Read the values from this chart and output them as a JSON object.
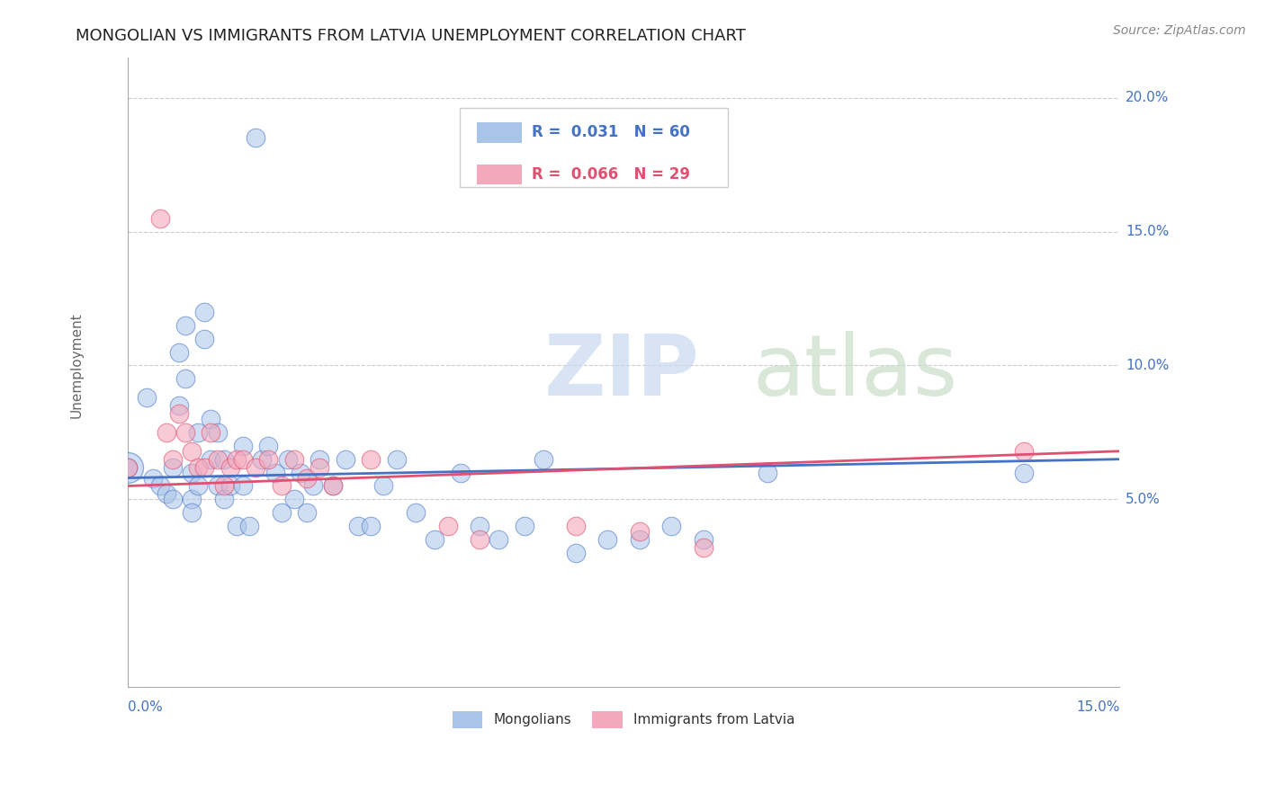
{
  "title": "MONGOLIAN VS IMMIGRANTS FROM LATVIA UNEMPLOYMENT CORRELATION CHART",
  "source": "Source: ZipAtlas.com",
  "ylabel": "Unemployment",
  "yaxis_labels": [
    "5.0%",
    "10.0%",
    "15.0%",
    "20.0%"
  ],
  "yaxis_values": [
    0.05,
    0.1,
    0.15,
    0.2
  ],
  "xlim": [
    0.0,
    0.155
  ],
  "ylim": [
    -0.02,
    0.215
  ],
  "legend_r1": "R =  0.031",
  "legend_n1": "N = 60",
  "legend_r2": "R =  0.066",
  "legend_n2": "N = 29",
  "blue_color": "#a8c4e8",
  "pink_color": "#f4a8bc",
  "blue_line_color": "#4472c4",
  "pink_line_color": "#e05070",
  "legend_text_color_blue": "#4472c4",
  "legend_text_color_pink": "#e05070",
  "axis_label_color": "#4472c4",
  "title_color": "#222222",
  "source_color": "#888888",
  "ylabel_color": "#666666",
  "mongolians_x": [
    0.0,
    0.003,
    0.004,
    0.005,
    0.006,
    0.007,
    0.007,
    0.008,
    0.008,
    0.009,
    0.009,
    0.01,
    0.01,
    0.01,
    0.011,
    0.011,
    0.012,
    0.012,
    0.013,
    0.013,
    0.014,
    0.014,
    0.015,
    0.015,
    0.016,
    0.017,
    0.018,
    0.018,
    0.019,
    0.02,
    0.021,
    0.022,
    0.023,
    0.024,
    0.025,
    0.026,
    0.027,
    0.028,
    0.029,
    0.03,
    0.032,
    0.034,
    0.036,
    0.038,
    0.04,
    0.042,
    0.045,
    0.048,
    0.052,
    0.055,
    0.058,
    0.062,
    0.065,
    0.07,
    0.075,
    0.08,
    0.085,
    0.09,
    0.1,
    0.14
  ],
  "mongolians_y": [
    0.062,
    0.088,
    0.058,
    0.055,
    0.052,
    0.062,
    0.05,
    0.105,
    0.085,
    0.115,
    0.095,
    0.06,
    0.05,
    0.045,
    0.075,
    0.055,
    0.12,
    0.11,
    0.08,
    0.065,
    0.075,
    0.055,
    0.065,
    0.05,
    0.055,
    0.04,
    0.07,
    0.055,
    0.04,
    0.185,
    0.065,
    0.07,
    0.06,
    0.045,
    0.065,
    0.05,
    0.06,
    0.045,
    0.055,
    0.065,
    0.055,
    0.065,
    0.04,
    0.04,
    0.055,
    0.065,
    0.045,
    0.035,
    0.06,
    0.04,
    0.035,
    0.04,
    0.065,
    0.03,
    0.035,
    0.035,
    0.04,
    0.035,
    0.06,
    0.06
  ],
  "latvia_x": [
    0.0,
    0.005,
    0.006,
    0.007,
    0.008,
    0.009,
    0.01,
    0.011,
    0.012,
    0.013,
    0.014,
    0.015,
    0.016,
    0.017,
    0.018,
    0.02,
    0.022,
    0.024,
    0.026,
    0.028,
    0.03,
    0.032,
    0.038,
    0.05,
    0.055,
    0.07,
    0.08,
    0.09,
    0.14
  ],
  "latvia_y": [
    0.062,
    0.155,
    0.075,
    0.065,
    0.082,
    0.075,
    0.068,
    0.062,
    0.062,
    0.075,
    0.065,
    0.055,
    0.062,
    0.065,
    0.065,
    0.062,
    0.065,
    0.055,
    0.065,
    0.058,
    0.062,
    0.055,
    0.065,
    0.04,
    0.035,
    0.04,
    0.038,
    0.032,
    0.068
  ],
  "blue_large_x": [
    0.0
  ],
  "blue_large_y": [
    0.062
  ],
  "blue_large_size": 600,
  "dot_size": 220,
  "blue_trend_x0": 0.0,
  "blue_trend_x1": 0.155,
  "blue_trend_y0": 0.058,
  "blue_trend_y1": 0.065,
  "pink_trend_y0": 0.055,
  "pink_trend_y1": 0.068
}
